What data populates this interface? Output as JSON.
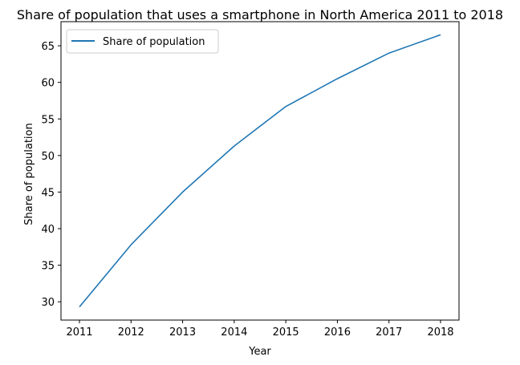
{
  "chart_data": {
    "type": "line",
    "title": "Share of population that uses a smartphone in North America 2011 to 2018",
    "xlabel": "Year",
    "ylabel": "Share of population",
    "x": [
      "2011",
      "2012",
      "2013",
      "2014",
      "2015",
      "2016",
      "2017",
      "2018"
    ],
    "series": [
      {
        "name": "Share of population",
        "color": "#1f77b4",
        "values": [
          29.3,
          37.8,
          45.0,
          51.3,
          56.7,
          60.5,
          64.0,
          66.5
        ]
      }
    ],
    "yticks": [
      30,
      35,
      40,
      45,
      50,
      55,
      60,
      65
    ],
    "ylim": [
      27.5,
      68.3
    ],
    "grid": false,
    "legend_position": "upper-left"
  }
}
